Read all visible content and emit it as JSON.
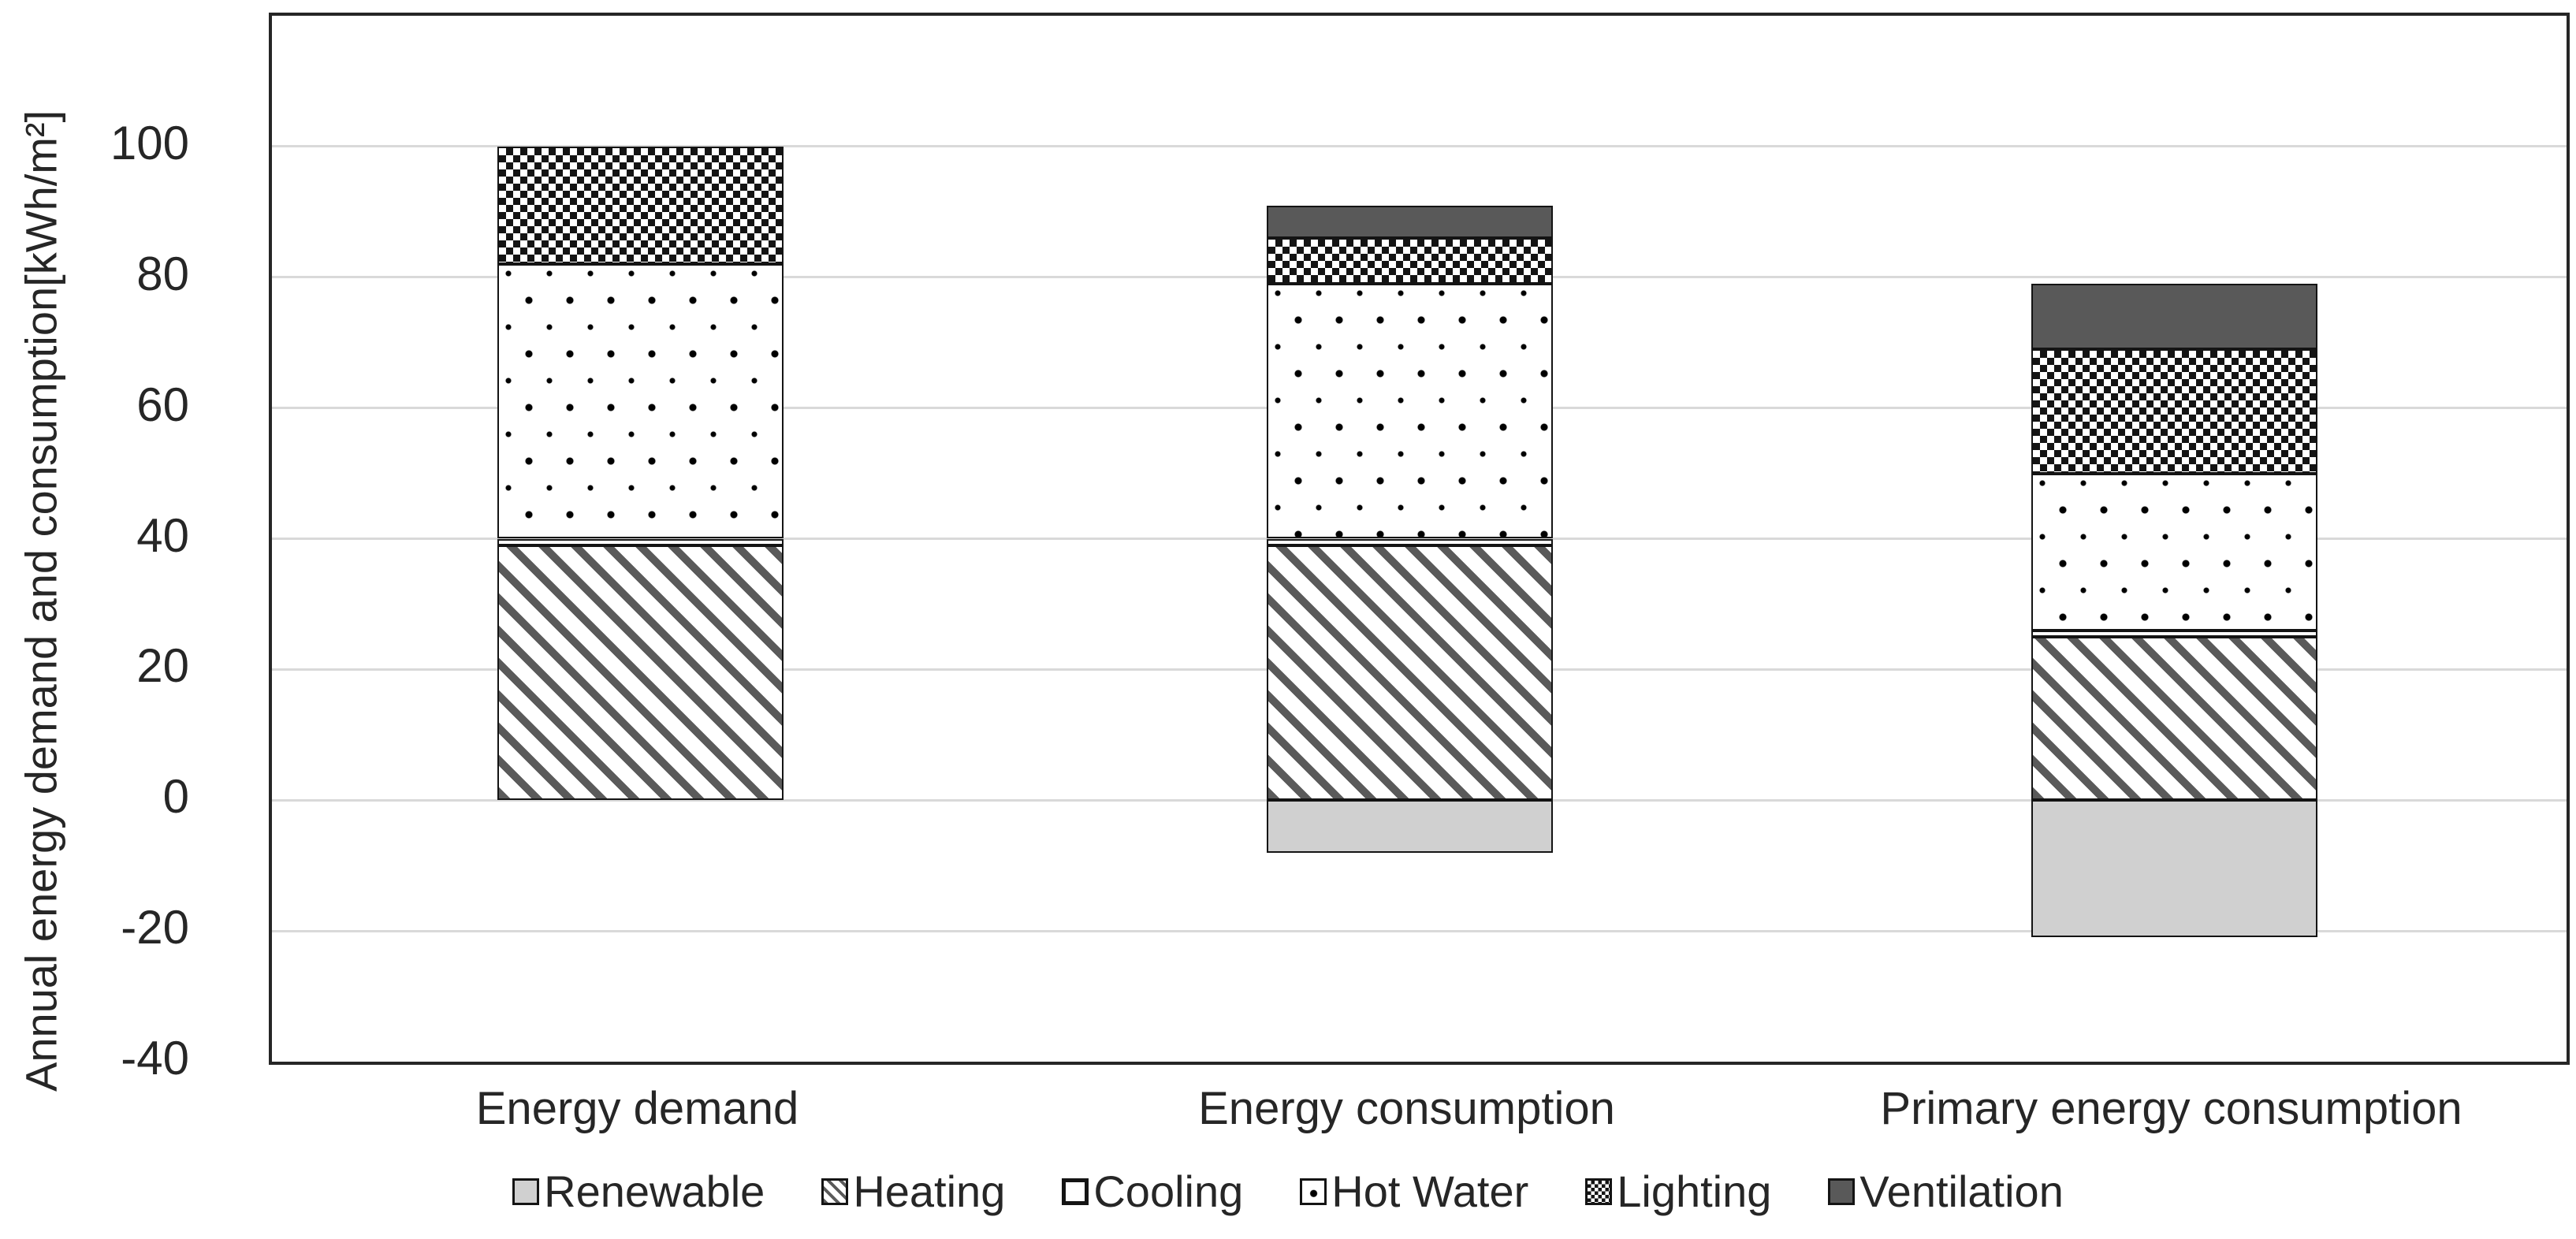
{
  "chart_data": {
    "type": "bar",
    "stacked": true,
    "title": "",
    "ylabel": "Annual energy demand and consumption[kWh/m²]",
    "xlabel": "",
    "ylim": [
      -40,
      120
    ],
    "yticks": [
      100,
      80,
      60,
      40,
      20,
      0,
      -20,
      -40
    ],
    "gridlines": [
      100,
      80,
      60,
      40,
      20,
      0,
      -20
    ],
    "grid": true,
    "legend_position": "bottom",
    "categories": [
      "Energy demand",
      "Energy consumption",
      "Primary energy consumption"
    ],
    "series": [
      {
        "name": "Renewable",
        "pattern": "renewable",
        "values": [
          0,
          -8,
          -21
        ]
      },
      {
        "name": "Heating",
        "pattern": "heating",
        "values": [
          39,
          39,
          25
        ]
      },
      {
        "name": "Cooling",
        "pattern": "cooling",
        "values": [
          1,
          1,
          1
        ]
      },
      {
        "name": "Hot Water",
        "pattern": "hotwater",
        "values": [
          42,
          39,
          24
        ]
      },
      {
        "name": "Lighting",
        "pattern": "lighting",
        "values": [
          18,
          7,
          19
        ]
      },
      {
        "name": "Ventilation",
        "pattern": "ventilation",
        "values": [
          0,
          5,
          10
        ]
      }
    ],
    "bar_totals_positive": [
      100,
      91,
      79
    ],
    "colors": {
      "renewable_fill": "#d0d0d0",
      "ventilation_fill": "#595959",
      "stripe_color": "#5a5a5a",
      "segment_border": "#141414",
      "gridline": "#d9d9d9",
      "axis_border": "#262626",
      "text": "#262626",
      "background": "#ffffff"
    }
  }
}
